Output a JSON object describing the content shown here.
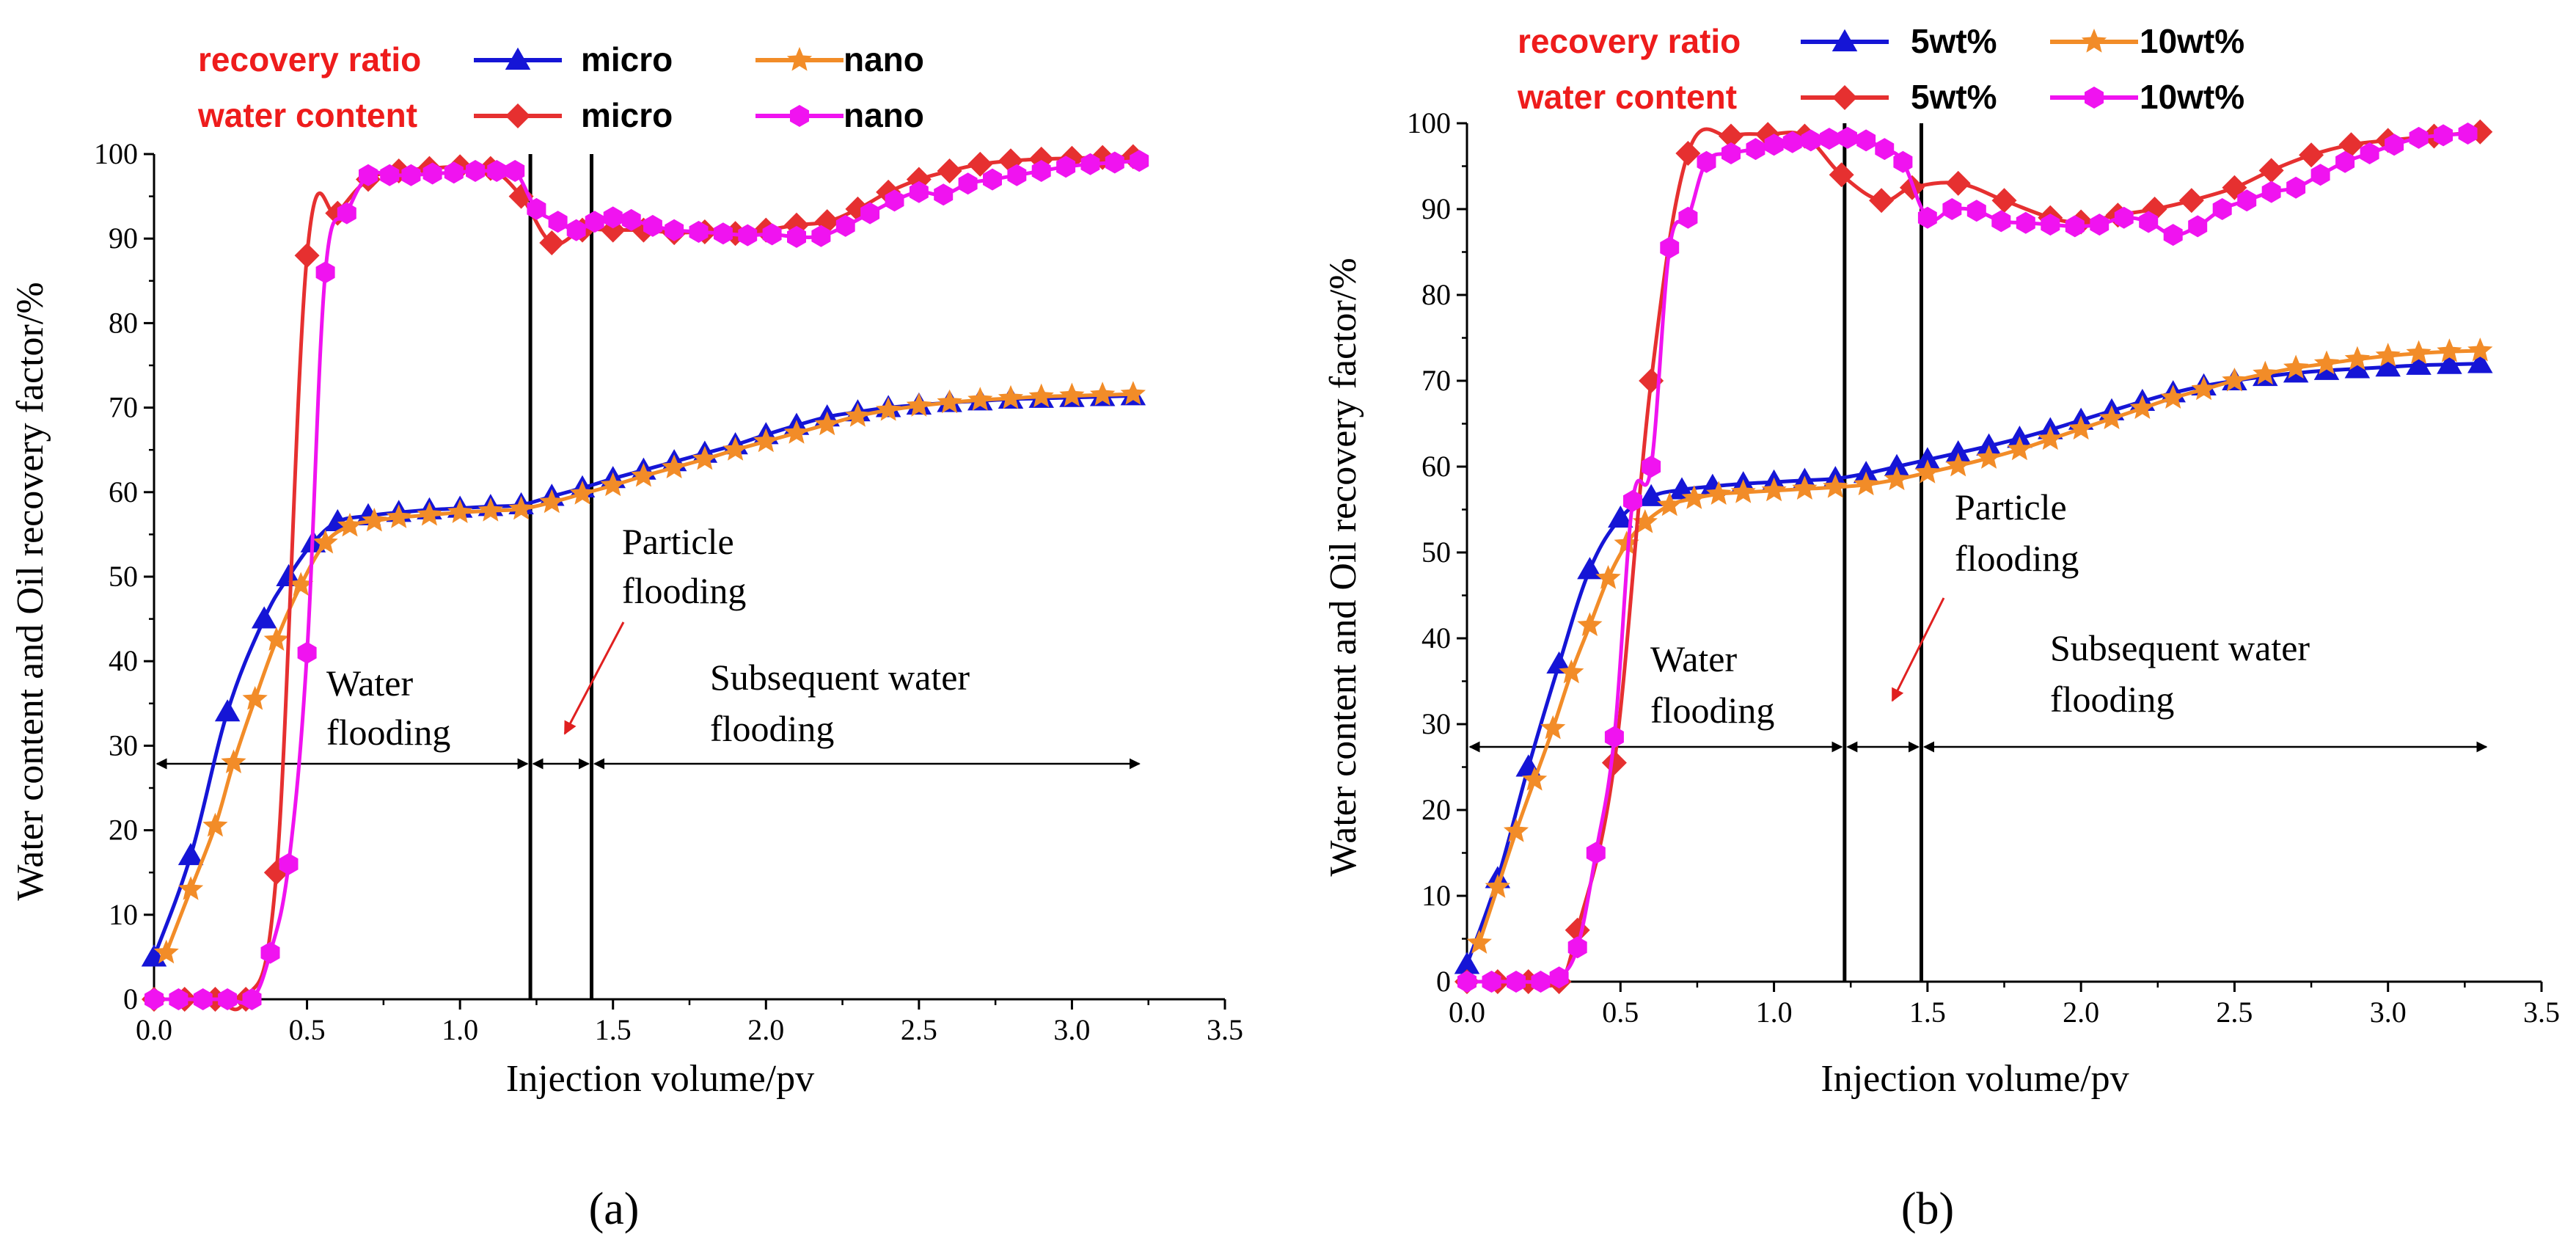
{
  "colors": {
    "micro_recovery": "#1515d6",
    "nano_recovery": "#f28c28",
    "micro_water": "#e63030",
    "nano_water": "#f013f0",
    "legend_red": "#ee1c1c",
    "arrow_red": "#e02020",
    "axis": "#000000"
  },
  "chart_data": [
    {
      "panel_label": "(a)",
      "type": "line",
      "xlabel": "Injection volume/pv",
      "ylabel": "Water content and Oil recovery factor/%",
      "xlim": [
        0.0,
        3.5
      ],
      "ylim": [
        0,
        100
      ],
      "x_ticks": [
        "0.0",
        "0.5",
        "1.0",
        "1.5",
        "2.0",
        "2.5",
        "3.0",
        "3.5"
      ],
      "y_ticks": [
        "0",
        "10",
        "20",
        "30",
        "40",
        "50",
        "60",
        "70",
        "80",
        "90",
        "100"
      ],
      "legend": {
        "row1_label": "recovery ratio",
        "row2_label": "water content",
        "entries": [
          "micro",
          "nano",
          "micro",
          "nano"
        ]
      },
      "stage_dividers_x": [
        1.23,
        1.43
      ],
      "annotations": {
        "stage1": [
          "Water",
          "flooding"
        ],
        "stage2": [
          "Particle",
          "flooding"
        ],
        "stage3": [
          "Subsequent water",
          "flooding"
        ]
      },
      "series": [
        {
          "name": "recovery ratio micro",
          "marker": "triangle",
          "x": [
            0.0,
            0.12,
            0.24,
            0.36,
            0.44,
            0.52,
            0.6,
            0.7,
            0.8,
            0.9,
            1.0,
            1.1,
            1.2,
            1.3,
            1.4,
            1.5,
            1.6,
            1.7,
            1.8,
            1.9,
            2.0,
            2.1,
            2.2,
            2.3,
            2.4,
            2.5,
            2.6,
            2.7,
            2.8,
            2.9,
            3.0,
            3.1,
            3.2
          ],
          "values": [
            5,
            17,
            34,
            45,
            50,
            54,
            56.5,
            57.2,
            57.6,
            57.9,
            58.1,
            58.3,
            58.5,
            59.5,
            60.5,
            61.6,
            62.6,
            63.6,
            64.6,
            65.6,
            66.8,
            67.9,
            68.9,
            69.5,
            70.0,
            70.3,
            70.6,
            70.8,
            71.0,
            71.1,
            71.2,
            71.3,
            71.4
          ]
        },
        {
          "name": "recovery ratio nano",
          "marker": "star",
          "x": [
            0.04,
            0.12,
            0.2,
            0.26,
            0.33,
            0.4,
            0.48,
            0.56,
            0.64,
            0.72,
            0.8,
            0.9,
            1.0,
            1.1,
            1.2,
            1.3,
            1.4,
            1.5,
            1.6,
            1.7,
            1.8,
            1.9,
            2.0,
            2.1,
            2.2,
            2.3,
            2.4,
            2.5,
            2.6,
            2.7,
            2.8,
            2.9,
            3.0,
            3.1,
            3.2
          ],
          "values": [
            5.5,
            13,
            20.5,
            28,
            35.5,
            42.5,
            49,
            54,
            56,
            56.6,
            57,
            57.3,
            57.6,
            57.8,
            58,
            58.8,
            59.8,
            60.8,
            61.9,
            62.9,
            63.9,
            65,
            66,
            67,
            68,
            69,
            69.7,
            70.2,
            70.6,
            70.9,
            71.1,
            71.3,
            71.4,
            71.5,
            71.6
          ]
        },
        {
          "name": "water content micro",
          "marker": "diamond",
          "x": [
            0.0,
            0.1,
            0.2,
            0.3,
            0.4,
            0.5,
            0.6,
            0.7,
            0.8,
            0.9,
            1.0,
            1.1,
            1.2,
            1.3,
            1.4,
            1.5,
            1.6,
            1.7,
            1.8,
            1.9,
            2.0,
            2.1,
            2.2,
            2.3,
            2.4,
            2.5,
            2.6,
            2.7,
            2.8,
            2.9,
            3.0,
            3.1,
            3.2
          ],
          "values": [
            0,
            0,
            0,
            0,
            15,
            88,
            93,
            97,
            98,
            98.3,
            98.5,
            98.3,
            95,
            89.5,
            91,
            91,
            91,
            90.7,
            90.8,
            90.6,
            91,
            91.6,
            92,
            93.5,
            95.5,
            97,
            98,
            98.8,
            99.2,
            99.4,
            99.5,
            99.6,
            99.7
          ]
        },
        {
          "name": "water content nano",
          "marker": "hexagon",
          "x": [
            0.0,
            0.08,
            0.16,
            0.24,
            0.32,
            0.38,
            0.44,
            0.5,
            0.56,
            0.63,
            0.7,
            0.77,
            0.84,
            0.91,
            0.98,
            1.05,
            1.12,
            1.18,
            1.25,
            1.32,
            1.38,
            1.44,
            1.5,
            1.56,
            1.63,
            1.7,
            1.78,
            1.86,
            1.94,
            2.02,
            2.1,
            2.18,
            2.26,
            2.34,
            2.42,
            2.5,
            2.58,
            2.66,
            2.74,
            2.82,
            2.9,
            2.98,
            3.06,
            3.14,
            3.22
          ],
          "values": [
            0,
            0,
            0,
            0,
            0,
            5.5,
            16,
            41,
            86,
            93,
            97.5,
            97.5,
            97.5,
            97.7,
            97.8,
            98,
            98,
            98,
            93.5,
            92,
            91,
            92,
            92.5,
            92.2,
            91.5,
            91,
            90.8,
            90.6,
            90.4,
            90.5,
            90.2,
            90.3,
            91.5,
            93,
            94.5,
            95.5,
            95.2,
            96.5,
            97,
            97.5,
            98,
            98.5,
            98.8,
            99,
            99.2
          ]
        }
      ]
    },
    {
      "panel_label": "(b)",
      "type": "line",
      "xlabel": "Injection volume/pv",
      "ylabel": "Water content and Oil recovery factor/%",
      "xlim": [
        0.0,
        3.5
      ],
      "ylim": [
        0,
        100
      ],
      "x_ticks": [
        "0.0",
        "0.5",
        "1.0",
        "1.5",
        "2.0",
        "2.5",
        "3.0",
        "3.5"
      ],
      "y_ticks": [
        "0",
        "10",
        "20",
        "30",
        "40",
        "50",
        "60",
        "70",
        "80",
        "90",
        "100"
      ],
      "legend": {
        "row1_label": "recovery ratio",
        "row2_label": "water content",
        "entries": [
          "5wt%",
          "10wt%",
          "5wt%",
          "10wt%"
        ]
      },
      "stage_dividers_x": [
        1.23,
        1.48
      ],
      "annotations": {
        "stage1": [
          "Water",
          "flooding"
        ],
        "stage2": [
          "Particle",
          "flooding"
        ],
        "stage3": [
          "Subsequent water",
          "flooding"
        ]
      },
      "series": [
        {
          "name": "recovery ratio 5wt%",
          "marker": "triangle",
          "x": [
            0.0,
            0.1,
            0.2,
            0.3,
            0.4,
            0.5,
            0.6,
            0.7,
            0.8,
            0.9,
            1.0,
            1.1,
            1.2,
            1.3,
            1.4,
            1.5,
            1.6,
            1.7,
            1.8,
            1.9,
            2.0,
            2.1,
            2.2,
            2.3,
            2.4,
            2.5,
            2.6,
            2.7,
            2.8,
            2.9,
            3.0,
            3.1,
            3.2,
            3.3
          ],
          "values": [
            2,
            12,
            25,
            37,
            48,
            54,
            56.5,
            57.3,
            57.7,
            58,
            58.2,
            58.4,
            58.6,
            59.2,
            60,
            60.8,
            61.6,
            62.4,
            63.3,
            64.3,
            65.4,
            66.5,
            67.6,
            68.6,
            69.4,
            70,
            70.5,
            70.9,
            71.2,
            71.4,
            71.6,
            71.8,
            71.9,
            72
          ]
        },
        {
          "name": "recovery ratio 10wt%",
          "marker": "star",
          "x": [
            0.04,
            0.1,
            0.16,
            0.22,
            0.28,
            0.34,
            0.4,
            0.46,
            0.52,
            0.58,
            0.66,
            0.74,
            0.82,
            0.9,
            1.0,
            1.1,
            1.2,
            1.3,
            1.4,
            1.5,
            1.6,
            1.7,
            1.8,
            1.9,
            2.0,
            2.1,
            2.2,
            2.3,
            2.4,
            2.5,
            2.6,
            2.7,
            2.8,
            2.9,
            3.0,
            3.1,
            3.2,
            3.3
          ],
          "values": [
            4.5,
            11,
            17.5,
            23.5,
            29.5,
            36,
            41.5,
            47,
            51,
            53.5,
            55.5,
            56.3,
            56.8,
            57,
            57.2,
            57.4,
            57.6,
            57.9,
            58.5,
            59.3,
            60.1,
            61,
            62,
            63.2,
            64.4,
            65.6,
            66.8,
            68,
            69,
            70,
            70.8,
            71.5,
            72,
            72.5,
            72.9,
            73.2,
            73.4,
            73.5
          ]
        },
        {
          "name": "water content 5wt%",
          "marker": "diamond",
          "x": [
            0.0,
            0.1,
            0.2,
            0.3,
            0.36,
            0.48,
            0.6,
            0.72,
            0.86,
            0.98,
            1.1,
            1.22,
            1.35,
            1.45,
            1.6,
            1.75,
            1.9,
            2.0,
            2.12,
            2.24,
            2.36,
            2.5,
            2.62,
            2.75,
            2.88,
            3.0,
            3.15,
            3.3
          ],
          "values": [
            0,
            0,
            0,
            0,
            6,
            25.5,
            70,
            96.5,
            98.5,
            98.7,
            98.5,
            94,
            91,
            92.5,
            93,
            91,
            89,
            88.5,
            89.3,
            90,
            91,
            92.5,
            94.5,
            96.3,
            97.5,
            98,
            98.5,
            99
          ]
        },
        {
          "name": "water content 10wt%",
          "marker": "hexagon",
          "x": [
            0.0,
            0.08,
            0.16,
            0.24,
            0.3,
            0.36,
            0.42,
            0.48,
            0.54,
            0.6,
            0.66,
            0.72,
            0.78,
            0.86,
            0.94,
            1.0,
            1.06,
            1.12,
            1.18,
            1.24,
            1.3,
            1.36,
            1.42,
            1.5,
            1.58,
            1.66,
            1.74,
            1.82,
            1.9,
            1.98,
            2.06,
            2.14,
            2.22,
            2.3,
            2.38,
            2.46,
            2.54,
            2.62,
            2.7,
            2.78,
            2.86,
            2.94,
            3.02,
            3.1,
            3.18,
            3.26
          ],
          "values": [
            0,
            0,
            0,
            0,
            0.5,
            4,
            15,
            28.5,
            56,
            60,
            85.5,
            89,
            95.5,
            96.5,
            97,
            97.5,
            97.8,
            98,
            98.2,
            98.3,
            98,
            97,
            95.5,
            89,
            90,
            89.8,
            88.6,
            88.4,
            88.2,
            88,
            88.2,
            89,
            88.5,
            87,
            88,
            90,
            91,
            92,
            92.5,
            94,
            95.5,
            96.5,
            97.5,
            98.3,
            98.6,
            98.8
          ]
        }
      ]
    }
  ]
}
